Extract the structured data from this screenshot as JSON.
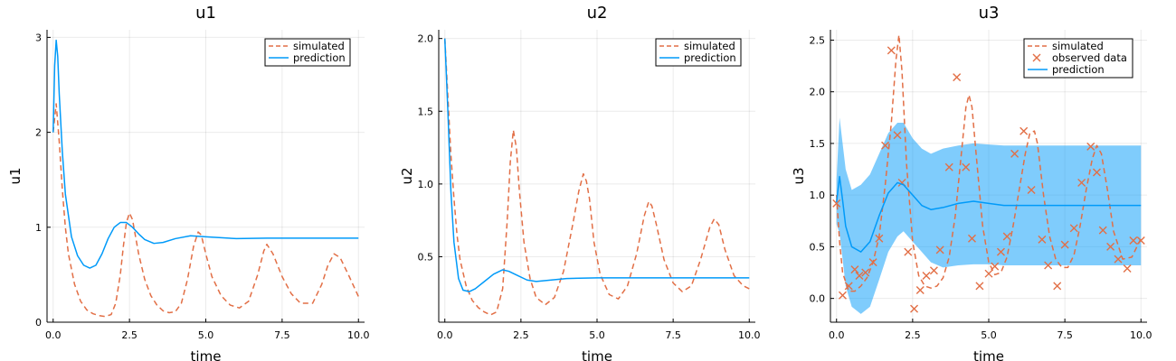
{
  "colors": {
    "simulated": "#e26f46",
    "prediction": "#009af9",
    "band": "#009af9",
    "observed": "#e26f46"
  },
  "chart_data": [
    {
      "type": "line",
      "title": "u1",
      "xlabel": "time",
      "ylabel": "u1",
      "xlim": [
        -0.2,
        10.2
      ],
      "ylim": [
        0,
        3.08
      ],
      "xticks": [
        0.0,
        2.5,
        5.0,
        7.5,
        10.0
      ],
      "xtick_labels": [
        "0.0",
        "2.5",
        "5.0",
        "7.5",
        "10.0"
      ],
      "yticks": [
        0,
        1,
        2,
        3
      ],
      "ytick_labels": [
        "0",
        "1",
        "2",
        "3"
      ],
      "grid": true,
      "legend": "top-right",
      "series": [
        {
          "name": "simulated",
          "style": "dashed",
          "x": [
            0,
            0.1,
            0.2,
            0.3,
            0.4,
            0.5,
            0.7,
            0.9,
            1.1,
            1.3,
            1.5,
            1.7,
            1.9,
            2.05,
            2.2,
            2.3,
            2.4,
            2.5,
            2.6,
            2.8,
            3.0,
            3.2,
            3.4,
            3.6,
            3.8,
            4.0,
            4.2,
            4.4,
            4.6,
            4.75,
            4.85,
            5.0,
            5.2,
            5.5,
            5.8,
            6.1,
            6.4,
            6.7,
            6.9,
            7.0,
            7.2,
            7.5,
            7.8,
            8.1,
            8.5,
            8.8,
            9.0,
            9.2,
            9.4,
            9.7,
            10.0
          ],
          "y": [
            2.0,
            2.3,
            1.9,
            1.4,
            1.0,
            0.72,
            0.4,
            0.22,
            0.13,
            0.09,
            0.07,
            0.06,
            0.08,
            0.2,
            0.5,
            0.8,
            1.05,
            1.15,
            1.08,
            0.72,
            0.45,
            0.28,
            0.18,
            0.12,
            0.1,
            0.11,
            0.2,
            0.45,
            0.8,
            0.95,
            0.92,
            0.72,
            0.48,
            0.28,
            0.18,
            0.15,
            0.22,
            0.5,
            0.75,
            0.82,
            0.72,
            0.48,
            0.3,
            0.2,
            0.2,
            0.4,
            0.6,
            0.72,
            0.68,
            0.48,
            0.27
          ]
        },
        {
          "name": "prediction",
          "style": "solid",
          "x": [
            0,
            0.05,
            0.1,
            0.15,
            0.2,
            0.3,
            0.4,
            0.6,
            0.8,
            1.0,
            1.2,
            1.4,
            1.6,
            1.8,
            2.0,
            2.2,
            2.4,
            2.6,
            2.8,
            3.0,
            3.3,
            3.6,
            4.0,
            4.5,
            5.0,
            5.5,
            6.0,
            7.0,
            8.0,
            9.0,
            10.0
          ],
          "y": [
            2.0,
            2.7,
            2.97,
            2.8,
            2.4,
            1.8,
            1.35,
            0.9,
            0.7,
            0.6,
            0.57,
            0.6,
            0.72,
            0.88,
            1.0,
            1.05,
            1.05,
            1.0,
            0.93,
            0.87,
            0.83,
            0.84,
            0.88,
            0.91,
            0.9,
            0.89,
            0.88,
            0.885,
            0.885,
            0.885,
            0.885
          ]
        }
      ]
    },
    {
      "type": "line",
      "title": "u2",
      "xlabel": "time",
      "ylabel": "u2",
      "xlim": [
        -0.2,
        10.2
      ],
      "ylim": [
        0.05,
        2.06
      ],
      "xticks": [
        0.0,
        2.5,
        5.0,
        7.5,
        10.0
      ],
      "xtick_labels": [
        "0.0",
        "2.5",
        "5.0",
        "7.5",
        "10.0"
      ],
      "yticks": [
        0.5,
        1.0,
        1.5,
        2.0
      ],
      "ytick_labels": [
        "0.5",
        "1.0",
        "1.5",
        "2.0"
      ],
      "grid": true,
      "legend": "top-right",
      "series": [
        {
          "name": "simulated",
          "style": "dashed",
          "x": [
            0,
            0.1,
            0.2,
            0.3,
            0.4,
            0.5,
            0.7,
            0.9,
            1.1,
            1.3,
            1.5,
            1.7,
            1.9,
            2.05,
            2.15,
            2.25,
            2.35,
            2.45,
            2.6,
            2.8,
            3.0,
            3.3,
            3.6,
            3.9,
            4.2,
            4.4,
            4.55,
            4.65,
            4.75,
            4.9,
            5.1,
            5.4,
            5.7,
            6.0,
            6.3,
            6.55,
            6.7,
            6.8,
            6.95,
            7.2,
            7.5,
            7.8,
            8.1,
            8.4,
            8.7,
            8.85,
            9.0,
            9.2,
            9.5,
            9.8,
            10.0
          ],
          "y": [
            2.0,
            1.6,
            1.2,
            0.9,
            0.65,
            0.48,
            0.3,
            0.2,
            0.15,
            0.12,
            0.1,
            0.12,
            0.28,
            0.75,
            1.15,
            1.37,
            1.25,
            0.95,
            0.6,
            0.35,
            0.22,
            0.17,
            0.22,
            0.4,
            0.72,
            0.95,
            1.07,
            1.02,
            0.9,
            0.6,
            0.38,
            0.24,
            0.21,
            0.3,
            0.52,
            0.78,
            0.88,
            0.85,
            0.72,
            0.48,
            0.32,
            0.26,
            0.3,
            0.48,
            0.7,
            0.76,
            0.72,
            0.55,
            0.37,
            0.3,
            0.28
          ]
        },
        {
          "name": "prediction",
          "style": "solid",
          "x": [
            0,
            0.1,
            0.2,
            0.3,
            0.45,
            0.6,
            0.8,
            1.0,
            1.3,
            1.6,
            1.9,
            2.1,
            2.4,
            2.7,
            3.0,
            3.5,
            4.0,
            5.0,
            6.0,
            7.0,
            8.0,
            9.0,
            10.0
          ],
          "y": [
            2.0,
            1.5,
            0.95,
            0.6,
            0.35,
            0.27,
            0.26,
            0.28,
            0.33,
            0.38,
            0.41,
            0.4,
            0.37,
            0.34,
            0.33,
            0.34,
            0.35,
            0.355,
            0.355,
            0.355,
            0.355,
            0.355,
            0.355
          ]
        }
      ]
    },
    {
      "type": "line",
      "title": "u3",
      "xlabel": "time",
      "ylabel": "u3",
      "xlim": [
        -0.2,
        10.2
      ],
      "ylim": [
        -0.23,
        2.6
      ],
      "xticks": [
        0.0,
        2.5,
        5.0,
        7.5,
        10.0
      ],
      "xtick_labels": [
        "0.0",
        "2.5",
        "5.0",
        "7.5",
        "10.0"
      ],
      "yticks": [
        0.0,
        0.5,
        1.0,
        1.5,
        2.0,
        2.5
      ],
      "ytick_labels": [
        "0.0",
        "0.5",
        "1.0",
        "1.5",
        "2.0",
        "2.5"
      ],
      "grid": true,
      "legend": "top-right",
      "series": [
        {
          "name": "simulated",
          "style": "dashed",
          "x": [
            0,
            0.1,
            0.2,
            0.4,
            0.6,
            0.8,
            1.0,
            1.2,
            1.4,
            1.6,
            1.8,
            1.95,
            2.05,
            2.15,
            2.3,
            2.5,
            2.7,
            2.9,
            3.1,
            3.3,
            3.5,
            3.7,
            3.9,
            4.1,
            4.25,
            4.35,
            4.45,
            4.6,
            4.8,
            5.0,
            5.2,
            5.4,
            5.6,
            5.8,
            6.0,
            6.2,
            6.35,
            6.5,
            6.6,
            6.8,
            7.0,
            7.2,
            7.4,
            7.6,
            7.8,
            8.0,
            8.2,
            8.4,
            8.55,
            8.7,
            8.9,
            9.1,
            9.4,
            9.7,
            10.0
          ],
          "y": [
            1.0,
            0.55,
            0.25,
            0.07,
            0.07,
            0.12,
            0.2,
            0.35,
            0.6,
            1.1,
            1.7,
            2.3,
            2.55,
            2.2,
            1.3,
            0.55,
            0.22,
            0.12,
            0.1,
            0.12,
            0.2,
            0.4,
            0.8,
            1.4,
            1.85,
            1.97,
            1.85,
            1.35,
            0.7,
            0.35,
            0.23,
            0.25,
            0.4,
            0.7,
            1.05,
            1.4,
            1.6,
            1.62,
            1.5,
            1.0,
            0.6,
            0.38,
            0.3,
            0.3,
            0.42,
            0.7,
            1.05,
            1.35,
            1.48,
            1.4,
            1.05,
            0.65,
            0.38,
            0.4,
            0.58
          ]
        },
        {
          "name": "observed data",
          "style": "markers",
          "x": [
            0.0,
            0.2,
            0.4,
            0.6,
            0.75,
            0.95,
            1.2,
            1.4,
            1.6,
            1.8,
            2.0,
            2.15,
            2.35,
            2.55,
            2.75,
            2.95,
            3.2,
            3.4,
            3.7,
            3.95,
            4.25,
            4.45,
            4.7,
            5.0,
            5.2,
            5.4,
            5.6,
            5.85,
            6.15,
            6.4,
            6.75,
            6.95,
            7.25,
            7.5,
            7.8,
            8.05,
            8.35,
            8.55,
            8.75,
            9.0,
            9.25,
            9.55,
            9.75,
            10.0
          ],
          "y": [
            0.92,
            0.03,
            0.12,
            0.28,
            0.22,
            0.25,
            0.35,
            0.58,
            1.48,
            2.4,
            1.58,
            1.12,
            0.45,
            -0.1,
            0.08,
            0.22,
            0.27,
            0.47,
            1.27,
            2.14,
            1.27,
            0.58,
            0.12,
            0.24,
            0.31,
            0.45,
            0.6,
            1.4,
            1.62,
            1.05,
            0.57,
            0.32,
            0.12,
            0.52,
            0.68,
            1.12,
            1.47,
            1.22,
            0.66,
            0.5,
            0.38,
            0.29,
            0.56,
            0.56
          ]
        },
        {
          "name": "prediction",
          "style": "solid",
          "x": [
            0,
            0.1,
            0.2,
            0.3,
            0.5,
            0.8,
            1.1,
            1.4,
            1.7,
            2.0,
            2.2,
            2.5,
            2.8,
            3.1,
            3.5,
            4.0,
            4.5,
            5.0,
            5.5,
            6.0,
            7.0,
            8.0,
            9.0,
            10.0
          ],
          "y": [
            0.93,
            1.18,
            0.95,
            0.7,
            0.5,
            0.45,
            0.55,
            0.8,
            1.02,
            1.12,
            1.1,
            1.0,
            0.9,
            0.86,
            0.88,
            0.92,
            0.94,
            0.92,
            0.9,
            0.9,
            0.9,
            0.9,
            0.9,
            0.9
          ],
          "lower": [
            0.72,
            0.63,
            0.38,
            0.12,
            -0.08,
            -0.15,
            -0.08,
            0.18,
            0.45,
            0.6,
            0.65,
            0.55,
            0.45,
            0.35,
            0.3,
            0.32,
            0.33,
            0.33,
            0.32,
            0.32,
            0.32,
            0.32,
            0.32,
            0.32
          ],
          "upper": [
            1.15,
            1.75,
            1.5,
            1.25,
            1.05,
            1.1,
            1.2,
            1.4,
            1.6,
            1.7,
            1.7,
            1.55,
            1.45,
            1.4,
            1.45,
            1.48,
            1.5,
            1.49,
            1.48,
            1.48,
            1.48,
            1.48,
            1.48,
            1.48
          ]
        }
      ]
    }
  ]
}
